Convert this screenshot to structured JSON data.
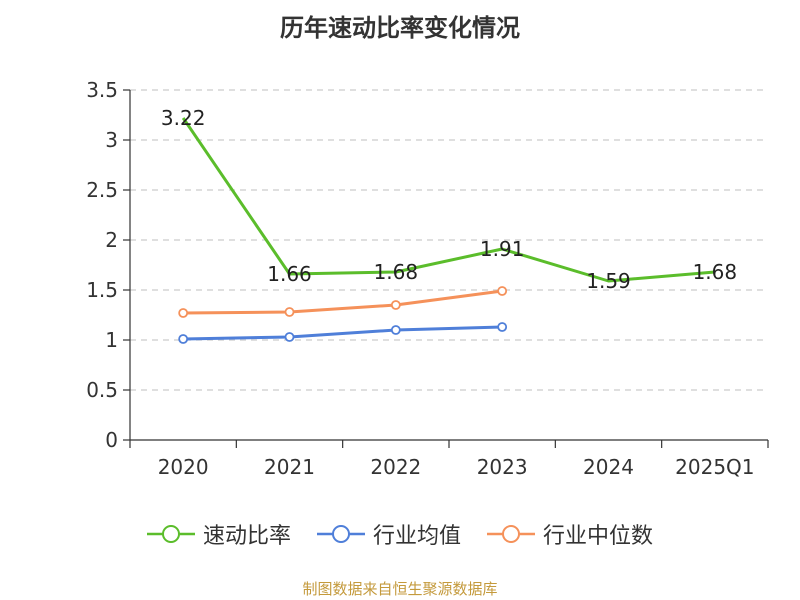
{
  "chart_data": {
    "type": "line",
    "title": "历年速动比率变化情况",
    "categories": [
      "2020",
      "2021",
      "2022",
      "2023",
      "2024",
      "2025Q1"
    ],
    "ylim": [
      0,
      3.5
    ],
    "yticks": [
      "0",
      "0.5",
      "1",
      "1.5",
      "2",
      "2.5",
      "3",
      "3.5"
    ],
    "grid": true,
    "legend_position": "bottom",
    "series": [
      {
        "name": "速动比率",
        "color": "#5bbd2b",
        "values": [
          3.22,
          1.66,
          1.68,
          1.91,
          1.59,
          1.68
        ],
        "labels": [
          "3.22",
          "1.66",
          "1.68",
          "1.91",
          "1.59",
          "1.68"
        ],
        "show_markers": false
      },
      {
        "name": "行业均值",
        "color": "#4f7fd9",
        "values": [
          1.01,
          1.03,
          1.1,
          1.13,
          null,
          null
        ],
        "show_markers": true
      },
      {
        "name": "行业中位数",
        "color": "#f5915a",
        "values": [
          1.27,
          1.28,
          1.35,
          1.49,
          null,
          null
        ],
        "show_markers": true
      }
    ]
  },
  "legend": {
    "items": [
      {
        "label": "速动比率",
        "color": "#5bbd2b"
      },
      {
        "label": "行业均值",
        "color": "#4f7fd9"
      },
      {
        "label": "行业中位数",
        "color": "#f5915a"
      }
    ]
  },
  "source_text": "制图数据来自恒生聚源数据库"
}
